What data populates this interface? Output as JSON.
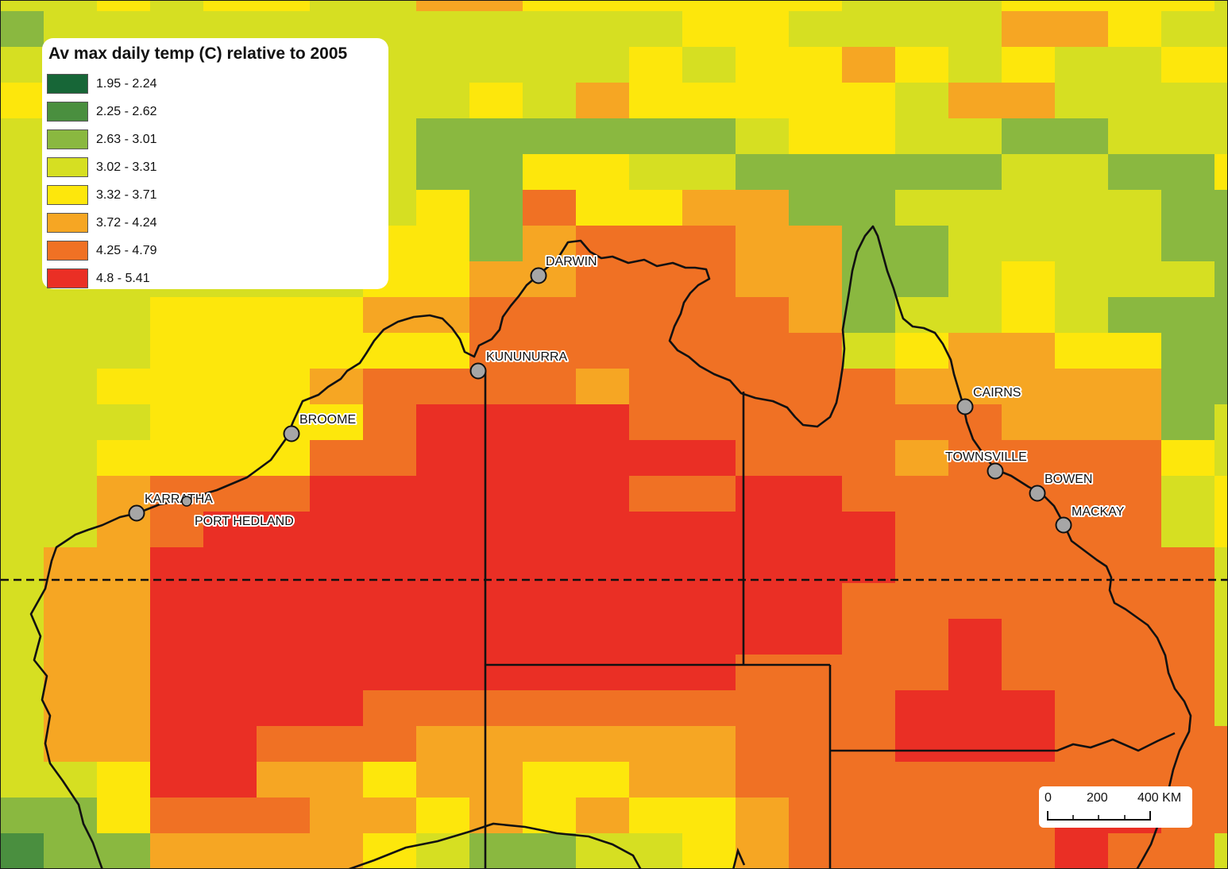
{
  "legend": {
    "title": "Av max daily temp (C) relative to 2005",
    "items": [
      {
        "label": "1.95 - 2.24",
        "color": "#176637"
      },
      {
        "label": "2.25 - 2.62",
        "color": "#4a8f3f"
      },
      {
        "label": "2.63 - 3.01",
        "color": "#8ab840"
      },
      {
        "label": "3.02 - 3.31",
        "color": "#d6df22"
      },
      {
        "label": "3.32 - 3.71",
        "color": "#fde70c"
      },
      {
        "label": "3.72 - 4.24",
        "color": "#f6a623"
      },
      {
        "label": "4.25 - 4.79",
        "color": "#f07124"
      },
      {
        "label": "4.8 - 5.41",
        "color": "#ea2f25"
      }
    ]
  },
  "cities": [
    {
      "name": "DARWIN"
    },
    {
      "name": "KUNUNURRA"
    },
    {
      "name": "BROOME"
    },
    {
      "name": "KARRATHA"
    },
    {
      "name": "PORT HEDLAND"
    },
    {
      "name": "CAIRNS"
    },
    {
      "name": "TOWNSVILLE"
    },
    {
      "name": "BOWEN"
    },
    {
      "name": "MACKAY"
    }
  ],
  "scale_bar": {
    "labels": [
      "0",
      "200",
      "400 KM"
    ]
  },
  "reference_line": "dashed (Tropic of Capricorn)"
}
